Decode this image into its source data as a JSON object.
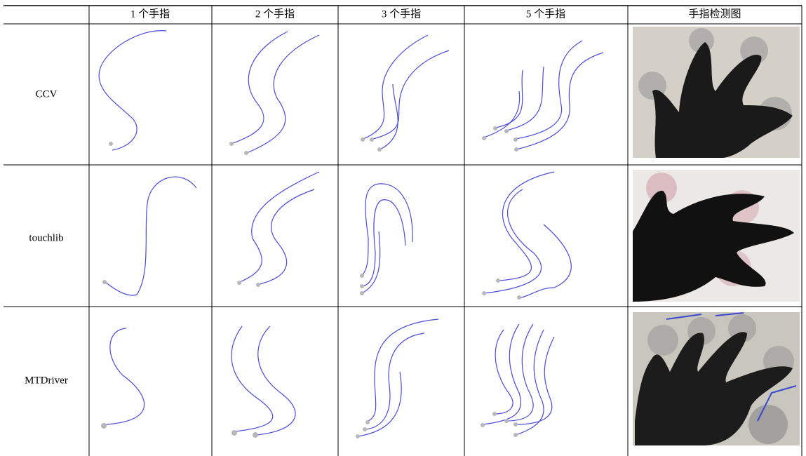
{
  "table": {
    "columns": [
      "1 个手指",
      "2 个手指",
      "3 个手指",
      "5 个手指",
      "手指检测图"
    ],
    "rows": [
      "CCV",
      "touchlib",
      "MTDriver"
    ]
  }
}
